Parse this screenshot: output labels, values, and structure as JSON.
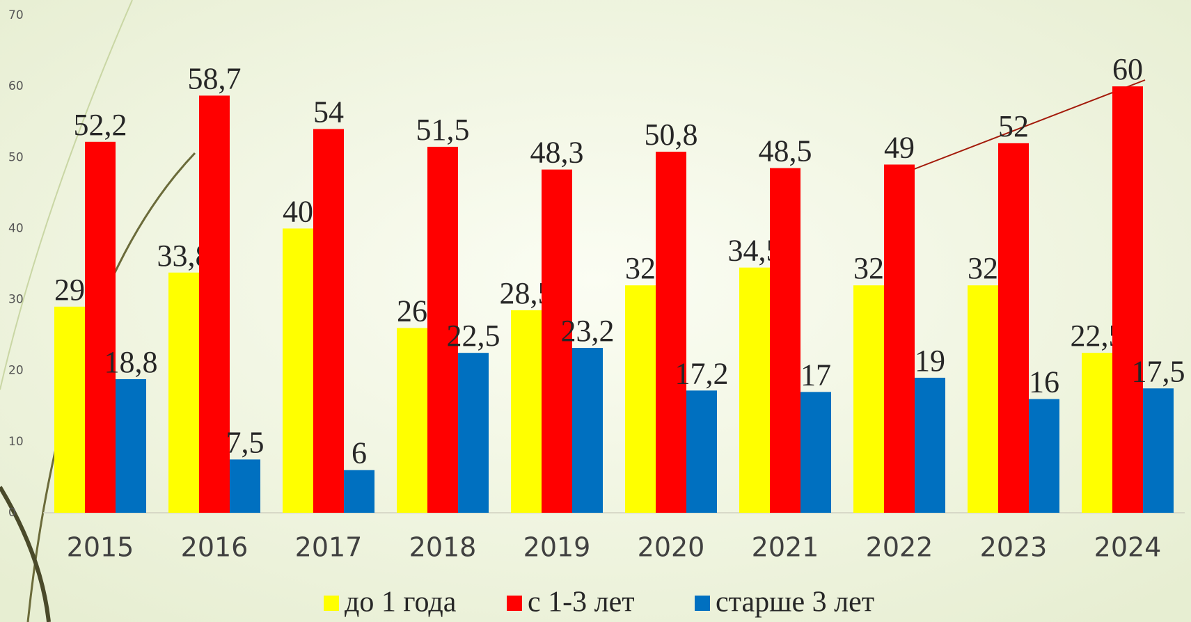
{
  "chart_data": {
    "type": "bar",
    "categories": [
      "2015",
      "2016",
      "2017",
      "2018",
      "2019",
      "2020",
      "2021",
      "2022",
      "2023",
      "2024"
    ],
    "series": [
      {
        "name": "до 1 года",
        "color": "#ffff00",
        "values": [
          29,
          33.8,
          40,
          26,
          28.5,
          32,
          34.5,
          32,
          32,
          22.5
        ],
        "value_labels": [
          "29",
          "33,8",
          "40",
          "26",
          "28,5",
          "32",
          "34,5",
          "32",
          "32",
          "22,5"
        ]
      },
      {
        "name": "с 1-3 лет",
        "color": "#ff0000",
        "values": [
          52.2,
          58.7,
          54,
          51.5,
          48.3,
          50.8,
          48.5,
          49,
          52,
          60
        ],
        "value_labels": [
          "52,2",
          "58,7",
          "54",
          "51,5",
          "48,3",
          "50,8",
          "48,5",
          "49",
          "52",
          "60"
        ]
      },
      {
        "name": "старше 3 лет",
        "color": "#0070c0",
        "values": [
          18.8,
          7.5,
          6,
          22.5,
          23.2,
          17.2,
          17,
          19,
          16,
          17.5
        ],
        "value_labels": [
          "18,8",
          "7,5",
          "6",
          "22,5",
          "23,2",
          "17,2",
          "17",
          "19",
          "16",
          "17,5"
        ]
      }
    ],
    "ylim": [
      0,
      70
    ],
    "yticks": [
      0,
      10,
      20,
      30,
      40,
      50,
      60,
      70
    ],
    "grid": false
  }
}
